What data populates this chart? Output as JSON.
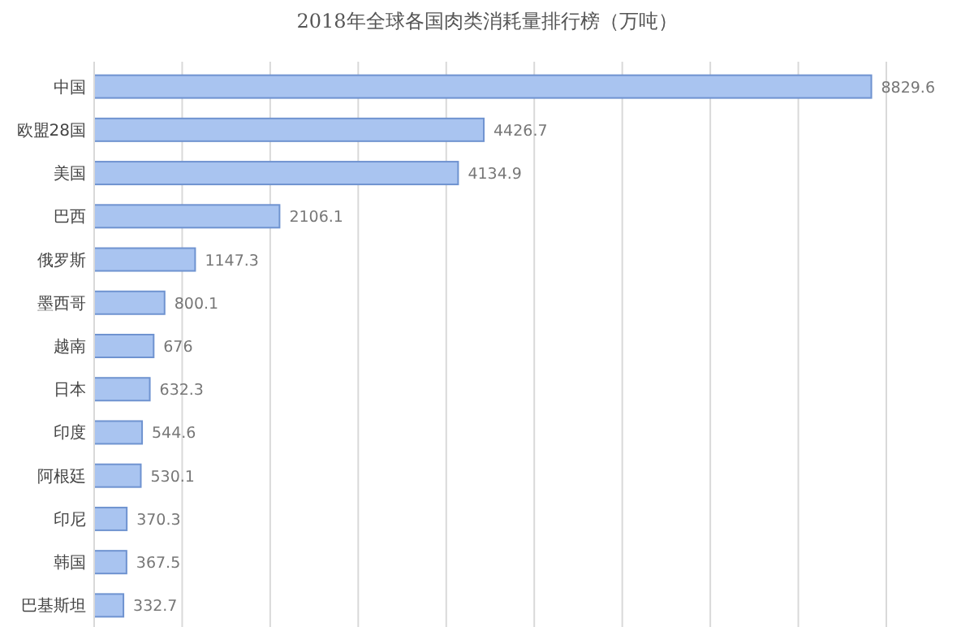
{
  "chart_data": {
    "type": "bar",
    "orientation": "horizontal",
    "title": "2018年全球各国肉类消耗量排行榜（万吨）",
    "categories": [
      "中国",
      "欧盟28国",
      "美国",
      "巴西",
      "俄罗斯",
      "墨西哥",
      "越南",
      "日本",
      "印度",
      "阿根廷",
      "印尼",
      "韩国",
      "巴基斯坦"
    ],
    "values": [
      8829.6,
      4426.7,
      4134.9,
      2106.1,
      1147.3,
      800.1,
      676,
      632.3,
      544.6,
      530.1,
      370.3,
      367.5,
      332.7
    ],
    "color": "#a9c4f0",
    "data_labels": true,
    "grid": "x",
    "xlim": [
      0,
      9000
    ],
    "xticks": [
      {
        "value": 0,
        "label": null
      },
      {
        "value": 1000,
        "label": null
      },
      {
        "value": 2000,
        "label": null
      },
      {
        "value": 3000,
        "label": null
      },
      {
        "value": 4000,
        "label": null
      },
      {
        "value": 5000,
        "label": null
      },
      {
        "value": 6000,
        "label": null
      },
      {
        "value": 7000,
        "label": null
      },
      {
        "value": 8000,
        "label": null
      },
      {
        "value": 9000,
        "label": null
      }
    ],
    "tick_labels": "y"
  }
}
